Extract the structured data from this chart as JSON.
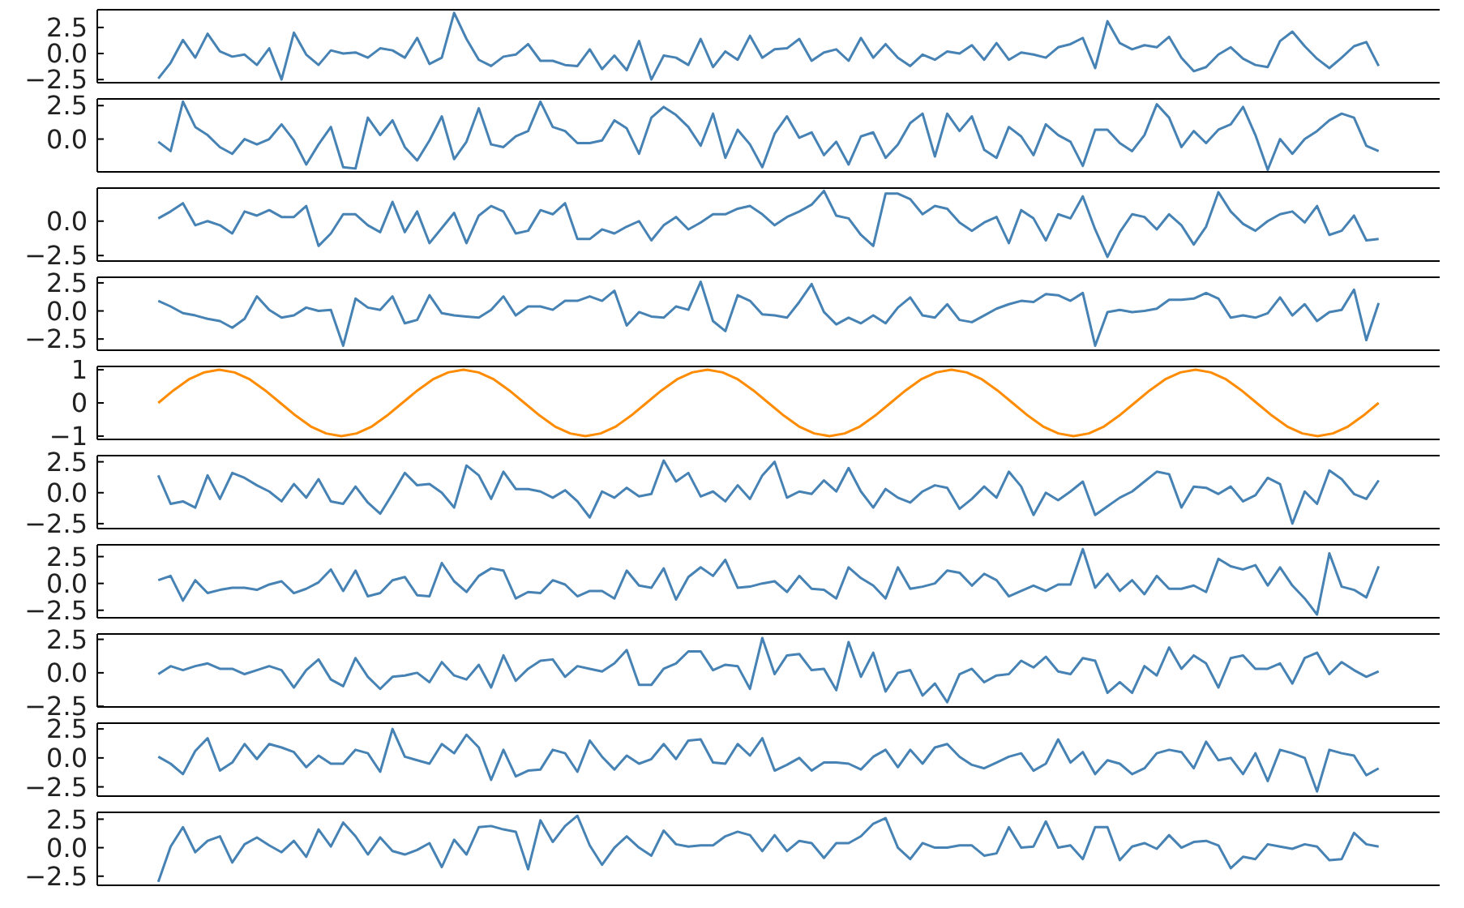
{
  "chart_data": [
    {
      "type": "line",
      "color": "#4682b4",
      "tick_labels": "y",
      "ylim": [
        -2.8,
        4.2
      ],
      "yticks": [
        {
          "value": -2.5,
          "label": "−2.5"
        },
        {
          "value": 0,
          "label": "0.0"
        },
        2.5
      ],
      "categories": [
        null,
        null,
        null,
        null,
        null,
        null,
        null,
        null,
        null,
        null,
        null,
        null,
        null,
        null,
        null,
        null,
        null,
        null,
        null,
        null,
        null,
        null,
        null,
        null,
        null,
        null,
        null,
        null,
        null,
        null,
        null,
        null,
        null,
        null,
        null,
        null,
        null,
        null,
        null,
        null,
        null,
        null,
        null,
        null,
        null,
        null,
        null,
        null,
        null,
        null,
        null,
        null,
        null,
        null,
        null,
        null,
        null,
        null,
        null,
        null,
        null,
        null,
        null,
        null,
        null,
        null,
        null,
        null,
        null,
        null,
        null,
        null,
        null,
        null,
        null,
        null,
        null,
        null,
        null,
        null,
        null,
        null,
        null,
        null,
        null,
        null,
        null,
        null,
        null,
        null,
        null,
        null,
        null,
        null,
        null,
        null,
        null,
        null,
        null,
        null
      ],
      "values": [
        -2.4,
        -0.9,
        1.3,
        -0.4,
        1.9,
        0.2,
        -0.3,
        -0.1,
        -1.1,
        0.5,
        -2.5,
        2.0,
        -0.1,
        -1.1,
        0.3,
        0,
        0.1,
        -0.4,
        0.5,
        0.3,
        -0.4,
        1.5,
        -1.0,
        -0.4,
        3.9,
        1.4,
        -0.6,
        -1.2,
        -0.3,
        -0.1,
        0.9,
        -0.7,
        -0.7,
        -1.1,
        -1.2,
        0.4,
        -1.5,
        -0.2,
        -1.6,
        1.2,
        -2.5,
        -0.2,
        -0.4,
        -1.1,
        1.4,
        -1.3,
        0.2,
        -0.6,
        1.7,
        -0.4,
        0.4,
        0.5,
        1.4,
        -0.7,
        0.1,
        0.4,
        -0.7,
        1.5,
        -0.4,
        0.9,
        -0.4,
        -1.2,
        -0.1,
        -0.6,
        0.2,
        0,
        0.8,
        -0.6,
        1.0,
        -0.6,
        0.1,
        -0.1,
        -0.4,
        0.6,
        0.9,
        1.5,
        -1.4,
        3.1,
        1.0,
        0.4,
        0.8,
        0.6,
        1.6,
        -0.4,
        -1.7,
        -1.3,
        -0.1,
        0.6,
        -0.5,
        -1.1,
        -1.3,
        1.2,
        2.1,
        0.7,
        -0.5,
        -1.4,
        -0.4,
        0.7,
        1.1,
        -1.2
      ]
    },
    {
      "type": "line",
      "color": "#4682b4",
      "tick_labels": "y",
      "ylim": [
        -2.45,
        3.0
      ],
      "yticks": [
        {
          "value": 0,
          "label": "0.0"
        },
        2.5
      ],
      "categories": [
        null,
        null,
        null,
        null,
        null,
        null,
        null,
        null,
        null,
        null,
        null,
        null,
        null,
        null,
        null,
        null,
        null,
        null,
        null,
        null,
        null,
        null,
        null,
        null,
        null,
        null,
        null,
        null,
        null,
        null,
        null,
        null,
        null,
        null,
        null,
        null,
        null,
        null,
        null,
        null,
        null,
        null,
        null,
        null,
        null,
        null,
        null,
        null,
        null,
        null,
        null,
        null,
        null,
        null,
        null,
        null,
        null,
        null,
        null,
        null,
        null,
        null,
        null,
        null,
        null,
        null,
        null,
        null,
        null,
        null,
        null,
        null,
        null,
        null,
        null,
        null,
        null,
        null,
        null,
        null,
        null,
        null,
        null,
        null,
        null,
        null,
        null,
        null,
        null,
        null,
        null,
        null,
        null,
        null,
        null,
        null,
        null,
        null,
        null,
        null
      ],
      "values": [
        -0.2,
        -0.9,
        2.8,
        0.9,
        0.3,
        -0.6,
        -1.1,
        0,
        -0.4,
        0,
        1.1,
        -0.1,
        -1.9,
        -0.4,
        0.9,
        -2.1,
        -2.2,
        1.6,
        0.3,
        1.4,
        -0.6,
        -1.6,
        -0.1,
        1.7,
        -1.5,
        -0.2,
        2.3,
        -0.4,
        -0.6,
        0.2,
        0.6,
        2.8,
        0.9,
        0.6,
        -0.3,
        -0.3,
        -0.1,
        1.4,
        0.8,
        -1.1,
        1.6,
        2.4,
        1.8,
        0.9,
        -0.5,
        1.9,
        -1.4,
        0.7,
        -0.4,
        -2.1,
        0.4,
        1.7,
        0.1,
        0.5,
        -1.2,
        -0.2,
        -1.9,
        0.2,
        0.5,
        -1.4,
        -0.4,
        1.2,
        1.9,
        -1.3,
        1.9,
        0.6,
        1.7,
        -0.8,
        -1.4,
        0.9,
        0.2,
        -1.2,
        1.1,
        0.3,
        -0.2,
        -2.0,
        0.7,
        0.7,
        -0.3,
        -0.9,
        0.3,
        2.6,
        1.6,
        -0.6,
        0.6,
        -0.3,
        0.7,
        1.1,
        2.4,
        0.3,
        -2.3,
        0,
        -1.1,
        0,
        0.6,
        1.4,
        1.9,
        1.6,
        -0.5,
        -0.9
      ]
    },
    {
      "type": "line",
      "color": "#4682b4",
      "tick_labels": "y",
      "ylim": [
        -2.9,
        2.4
      ],
      "yticks": [
        {
          "value": -2.5,
          "label": "−2.5"
        },
        {
          "value": 0,
          "label": "0.0"
        }
      ],
      "categories": [
        null,
        null,
        null,
        null,
        null,
        null,
        null,
        null,
        null,
        null,
        null,
        null,
        null,
        null,
        null,
        null,
        null,
        null,
        null,
        null,
        null,
        null,
        null,
        null,
        null,
        null,
        null,
        null,
        null,
        null,
        null,
        null,
        null,
        null,
        null,
        null,
        null,
        null,
        null,
        null,
        null,
        null,
        null,
        null,
        null,
        null,
        null,
        null,
        null,
        null,
        null,
        null,
        null,
        null,
        null,
        null,
        null,
        null,
        null,
        null,
        null,
        null,
        null,
        null,
        null,
        null,
        null,
        null,
        null,
        null,
        null,
        null,
        null,
        null,
        null,
        null,
        null,
        null,
        null,
        null,
        null,
        null,
        null,
        null,
        null,
        null,
        null,
        null,
        null,
        null,
        null,
        null,
        null,
        null,
        null,
        null,
        null,
        null,
        null,
        null
      ],
      "values": [
        0.2,
        0.7,
        1.3,
        -0.3,
        0,
        -0.3,
        -0.9,
        0.7,
        0.4,
        0.8,
        0.3,
        0.3,
        1.1,
        -1.8,
        -0.9,
        0.5,
        0.5,
        -0.3,
        -0.8,
        1.4,
        -0.8,
        0.7,
        -1.6,
        -0.5,
        0.6,
        -1.6,
        0.4,
        1.1,
        0.7,
        -0.9,
        -0.7,
        0.8,
        0.5,
        1.3,
        -1.3,
        -1.3,
        -0.6,
        -0.9,
        -0.4,
        0,
        -1.4,
        -0.3,
        0.3,
        -0.6,
        -0.1,
        0.5,
        0.5,
        0.9,
        1.1,
        0.5,
        -0.3,
        0.3,
        0.7,
        1.2,
        2.2,
        0.4,
        0.2,
        -1.0,
        -1.8,
        2.0,
        2.0,
        1.6,
        0.5,
        1.1,
        0.9,
        -0.1,
        -0.7,
        -0.1,
        0.3,
        -1.6,
        0.8,
        0.2,
        -1.4,
        0.5,
        0.2,
        1.8,
        -0.6,
        -2.6,
        -0.8,
        0.5,
        0.3,
        -0.6,
        0.5,
        -0.3,
        -1.7,
        -0.4,
        2.1,
        0.7,
        -0.2,
        -0.7,
        0,
        0.5,
        0.7,
        -0.1,
        1.1,
        -1.0,
        -0.7,
        0.4,
        -1.4,
        -1.3
      ]
    },
    {
      "type": "line",
      "color": "#4682b4",
      "tick_labels": "y",
      "ylim": [
        -3.5,
        3.0
      ],
      "yticks": [
        {
          "value": -2.5,
          "label": "−2.5"
        },
        {
          "value": 0,
          "label": "0.0"
        },
        2.5
      ],
      "categories": [
        null,
        null,
        null,
        null,
        null,
        null,
        null,
        null,
        null,
        null,
        null,
        null,
        null,
        null,
        null,
        null,
        null,
        null,
        null,
        null,
        null,
        null,
        null,
        null,
        null,
        null,
        null,
        null,
        null,
        null,
        null,
        null,
        null,
        null,
        null,
        null,
        null,
        null,
        null,
        null,
        null,
        null,
        null,
        null,
        null,
        null,
        null,
        null,
        null,
        null,
        null,
        null,
        null,
        null,
        null,
        null,
        null,
        null,
        null,
        null,
        null,
        null,
        null,
        null,
        null,
        null,
        null,
        null,
        null,
        null,
        null,
        null,
        null,
        null,
        null,
        null,
        null,
        null,
        null,
        null,
        null,
        null,
        null,
        null,
        null,
        null,
        null,
        null,
        null,
        null,
        null,
        null,
        null,
        null,
        null,
        null,
        null,
        null,
        null,
        null
      ],
      "values": [
        0.9,
        0.4,
        -0.2,
        -0.4,
        -0.7,
        -0.9,
        -1.5,
        -0.7,
        1.3,
        0.1,
        -0.6,
        -0.4,
        0.3,
        0,
        0.1,
        -3.1,
        1.1,
        0.3,
        0.1,
        1.3,
        -1.1,
        -0.8,
        1.4,
        -0.2,
        -0.4,
        -0.5,
        -0.6,
        0.1,
        1.3,
        -0.4,
        0.4,
        0.4,
        0.1,
        0.9,
        0.9,
        1.3,
        0.9,
        1.8,
        -1.3,
        -0.1,
        -0.5,
        -0.6,
        0.4,
        0.1,
        2.6,
        -0.9,
        -1.8,
        1.4,
        0.9,
        -0.3,
        -0.4,
        -0.6,
        0.8,
        2.4,
        -0.1,
        -1.2,
        -0.6,
        -1.1,
        -0.4,
        -1.1,
        0.3,
        1.2,
        -0.4,
        -0.6,
        0.6,
        -0.8,
        -1.0,
        -0.4,
        0.2,
        0.6,
        0.9,
        0.8,
        1.5,
        1.4,
        0.9,
        1.6,
        -3.1,
        -0.1,
        0.1,
        -0.1,
        0,
        0.2,
        1.0,
        1.0,
        1.1,
        1.6,
        1.1,
        -0.6,
        -0.4,
        -0.6,
        -0.2,
        1.2,
        -0.4,
        0.6,
        -0.9,
        -0.1,
        0.1,
        1.9,
        -2.6,
        0.7
      ]
    },
    {
      "type": "line",
      "color": "#ff8c00",
      "tick_labels": "y",
      "ylim": [
        -1.1,
        1.1
      ],
      "yticks": [
        {
          "value": -1,
          "label": "−1"
        },
        0,
        1
      ],
      "categories": [
        null,
        null,
        null,
        null,
        null,
        null,
        null,
        null,
        null,
        null,
        null,
        null,
        null,
        null,
        null,
        null,
        null,
        null,
        null,
        null,
        null,
        null,
        null,
        null,
        null,
        null,
        null,
        null,
        null,
        null,
        null,
        null,
        null,
        null,
        null,
        null,
        null,
        null,
        null,
        null,
        null,
        null,
        null,
        null,
        null,
        null,
        null,
        null,
        null,
        null,
        null,
        null,
        null,
        null,
        null,
        null,
        null,
        null,
        null,
        null,
        null,
        null,
        null,
        null,
        null,
        null,
        null,
        null,
        null,
        null,
        null,
        null,
        null,
        null,
        null,
        null,
        null,
        null,
        null,
        null,
        null
      ],
      "values": [
        0,
        0.38,
        0.71,
        0.92,
        1,
        0.92,
        0.71,
        0.38,
        0,
        -0.38,
        -0.71,
        -0.92,
        -1,
        -0.92,
        -0.71,
        -0.38,
        0,
        0.38,
        0.71,
        0.92,
        1,
        0.92,
        0.71,
        0.38,
        0,
        -0.38,
        -0.71,
        -0.92,
        -1,
        -0.92,
        -0.71,
        -0.38,
        0,
        0.38,
        0.71,
        0.92,
        1,
        0.92,
        0.71,
        0.38,
        0,
        -0.38,
        -0.71,
        -0.92,
        -1,
        -0.92,
        -0.71,
        -0.38,
        0,
        0.38,
        0.71,
        0.92,
        1,
        0.92,
        0.71,
        0.38,
        0,
        -0.38,
        -0.71,
        -0.92,
        -1,
        -0.92,
        -0.71,
        -0.38,
        0,
        0.38,
        0.71,
        0.92,
        1,
        0.92,
        0.71,
        0.38,
        0,
        -0.38,
        -0.71,
        -0.92,
        -1,
        -0.92,
        -0.71,
        -0.38,
        0
      ]
    },
    {
      "type": "line",
      "color": "#4682b4",
      "tick_labels": "y",
      "ylim": [
        -2.9,
        3.0
      ],
      "yticks": [
        {
          "value": -2.5,
          "label": "−2.5"
        },
        {
          "value": 0,
          "label": "0.0"
        },
        2.5
      ],
      "categories": [
        null,
        null,
        null,
        null,
        null,
        null,
        null,
        null,
        null,
        null,
        null,
        null,
        null,
        null,
        null,
        null,
        null,
        null,
        null,
        null,
        null,
        null,
        null,
        null,
        null,
        null,
        null,
        null,
        null,
        null,
        null,
        null,
        null,
        null,
        null,
        null,
        null,
        null,
        null,
        null,
        null,
        null,
        null,
        null,
        null,
        null,
        null,
        null,
        null,
        null,
        null,
        null,
        null,
        null,
        null,
        null,
        null,
        null,
        null,
        null,
        null,
        null,
        null,
        null,
        null,
        null,
        null,
        null,
        null,
        null,
        null,
        null,
        null,
        null,
        null,
        null,
        null,
        null,
        null,
        null,
        null,
        null,
        null,
        null,
        null,
        null,
        null,
        null,
        null,
        null,
        null,
        null,
        null,
        null,
        null,
        null,
        null,
        null,
        null,
        null
      ],
      "values": [
        1.4,
        -0.9,
        -0.7,
        -1.2,
        1.4,
        -0.5,
        1.6,
        1.2,
        0.6,
        0.1,
        -0.7,
        0.7,
        -0.4,
        1.1,
        -0.7,
        -0.9,
        0.5,
        -0.8,
        -1.7,
        -0.1,
        1.6,
        0.6,
        0.7,
        0,
        -1.2,
        2.2,
        1.4,
        -0.5,
        1.7,
        0.3,
        0.3,
        0.1,
        -0.4,
        0.2,
        -0.7,
        -2.0,
        0.1,
        -0.4,
        0.4,
        -0.3,
        -0.1,
        2.6,
        0.9,
        1.6,
        -0.3,
        0.1,
        -0.7,
        0.6,
        -0.5,
        1.4,
        2.5,
        -0.4,
        0.1,
        -0.1,
        1.0,
        0.1,
        2.0,
        0.1,
        -1.2,
        0.3,
        -0.4,
        -0.8,
        0.1,
        0.6,
        0.4,
        -1.3,
        -0.5,
        0.5,
        -0.4,
        1.7,
        0.5,
        -1.8,
        0,
        -0.6,
        0.1,
        0.9,
        -1.8,
        -1.1,
        -0.4,
        0.1,
        0.9,
        1.7,
        1.5,
        -1.2,
        0.5,
        0.4,
        -0.1,
        0.5,
        -0.7,
        -0.2,
        1.2,
        0.7,
        -2.5,
        0.1,
        -0.9,
        1.8,
        1.1,
        -0.1,
        -0.5,
        1.0
      ]
    },
    {
      "type": "line",
      "color": "#4682b4",
      "tick_labels": "y",
      "ylim": [
        -3.2,
        3.6
      ],
      "yticks": [
        {
          "value": -2.5,
          "label": "−2.5"
        },
        {
          "value": 0,
          "label": "0.0"
        },
        2.5
      ],
      "categories": [
        null,
        null,
        null,
        null,
        null,
        null,
        null,
        null,
        null,
        null,
        null,
        null,
        null,
        null,
        null,
        null,
        null,
        null,
        null,
        null,
        null,
        null,
        null,
        null,
        null,
        null,
        null,
        null,
        null,
        null,
        null,
        null,
        null,
        null,
        null,
        null,
        null,
        null,
        null,
        null,
        null,
        null,
        null,
        null,
        null,
        null,
        null,
        null,
        null,
        null,
        null,
        null,
        null,
        null,
        null,
        null,
        null,
        null,
        null,
        null,
        null,
        null,
        null,
        null,
        null,
        null,
        null,
        null,
        null,
        null,
        null,
        null,
        null,
        null,
        null,
        null,
        null,
        null,
        null,
        null,
        null,
        null,
        null,
        null,
        null,
        null,
        null,
        null,
        null,
        null,
        null,
        null,
        null,
        null,
        null,
        null,
        null,
        null,
        null,
        null
      ],
      "values": [
        0.3,
        0.7,
        -1.6,
        0.3,
        -0.9,
        -0.6,
        -0.4,
        -0.4,
        -0.6,
        -0.1,
        0.2,
        -0.9,
        -0.5,
        0.1,
        1.3,
        -0.7,
        1.2,
        -1.2,
        -0.9,
        0.3,
        0.6,
        -1.1,
        -1.2,
        1.9,
        0.2,
        -0.8,
        0.7,
        1.4,
        1.2,
        -1.4,
        -0.8,
        -0.9,
        0.3,
        -0.1,
        -1.2,
        -0.7,
        -0.7,
        -1.4,
        1.2,
        -0.2,
        -0.4,
        1.4,
        -1.5,
        0.6,
        1.5,
        0.7,
        2.2,
        -0.4,
        -0.3,
        0,
        0.2,
        -0.8,
        0.7,
        -0.5,
        -0.6,
        -1.4,
        1.5,
        0.5,
        -0.2,
        -1.4,
        1.5,
        -0.5,
        -0.3,
        0,
        1.2,
        1.0,
        -0.2,
        0.9,
        0.3,
        -1.2,
        -0.7,
        -0.2,
        -0.7,
        -0.1,
        -0.1,
        3.2,
        -0.4,
        0.9,
        -0.7,
        0.3,
        -1.0,
        0.7,
        -0.5,
        -0.5,
        -0.2,
        -0.8,
        2.3,
        1.6,
        1.3,
        1.7,
        -0.2,
        1.5,
        -0.2,
        -1.4,
        -2.9,
        2.8,
        -0.3,
        -0.6,
        -1.3,
        1.6
      ]
    },
    {
      "type": "line",
      "color": "#4682b4",
      "tick_labels": "y",
      "ylim": [
        -2.55,
        2.9
      ],
      "yticks": [
        {
          "value": -2.5,
          "label": "−2.5"
        },
        {
          "value": 0,
          "label": "0.0"
        },
        2.5
      ],
      "categories": [
        null,
        null,
        null,
        null,
        null,
        null,
        null,
        null,
        null,
        null,
        null,
        null,
        null,
        null,
        null,
        null,
        null,
        null,
        null,
        null,
        null,
        null,
        null,
        null,
        null,
        null,
        null,
        null,
        null,
        null,
        null,
        null,
        null,
        null,
        null,
        null,
        null,
        null,
        null,
        null,
        null,
        null,
        null,
        null,
        null,
        null,
        null,
        null,
        null,
        null,
        null,
        null,
        null,
        null,
        null,
        null,
        null,
        null,
        null,
        null,
        null,
        null,
        null,
        null,
        null,
        null,
        null,
        null,
        null,
        null,
        null,
        null,
        null,
        null,
        null,
        null,
        null,
        null,
        null,
        null,
        null,
        null,
        null,
        null,
        null,
        null,
        null,
        null,
        null,
        null,
        null,
        null,
        null,
        null,
        null,
        null,
        null,
        null,
        null,
        null
      ],
      "values": [
        -0.1,
        0.5,
        0.2,
        0.5,
        0.7,
        0.3,
        0.3,
        -0.1,
        0.2,
        0.5,
        0.2,
        -1.1,
        0.2,
        1.0,
        -0.5,
        -1.0,
        1.1,
        -0.3,
        -1.2,
        -0.3,
        -0.2,
        0,
        -0.7,
        0.8,
        -0.2,
        -0.5,
        0.6,
        -1.1,
        1.3,
        -0.6,
        0.3,
        0.9,
        1.0,
        -0.3,
        0.5,
        0.3,
        0.1,
        0.7,
        1.7,
        -0.9,
        -0.9,
        0.3,
        0.7,
        1.6,
        1.6,
        0.2,
        0.6,
        0.5,
        -1.2,
        2.6,
        -0.1,
        1.3,
        1.4,
        0.2,
        0.3,
        -1.3,
        2.3,
        -0.3,
        1.5,
        -1.4,
        0,
        0.2,
        -1.7,
        -0.8,
        -2.2,
        -0.1,
        0.3,
        -0.7,
        -0.2,
        -0.1,
        0.9,
        0.4,
        1.2,
        0.1,
        -0.1,
        1.1,
        0.9,
        -1.5,
        -0.7,
        -1.5,
        0.5,
        -0.2,
        1.9,
        0.3,
        1.3,
        0.7,
        -1.1,
        1.1,
        1.3,
        0.3,
        0.3,
        0.7,
        -0.8,
        1.1,
        1.5,
        -0.1,
        0.8,
        0.2,
        -0.3,
        0.1
      ]
    },
    {
      "type": "line",
      "color": "#4682b4",
      "tick_labels": "y",
      "ylim": [
        -3.3,
        3.0
      ],
      "yticks": [
        {
          "value": -2.5,
          "label": "−2.5"
        },
        {
          "value": 0,
          "label": "0.0"
        },
        2.5
      ],
      "categories": [
        null,
        null,
        null,
        null,
        null,
        null,
        null,
        null,
        null,
        null,
        null,
        null,
        null,
        null,
        null,
        null,
        null,
        null,
        null,
        null,
        null,
        null,
        null,
        null,
        null,
        null,
        null,
        null,
        null,
        null,
        null,
        null,
        null,
        null,
        null,
        null,
        null,
        null,
        null,
        null,
        null,
        null,
        null,
        null,
        null,
        null,
        null,
        null,
        null,
        null,
        null,
        null,
        null,
        null,
        null,
        null,
        null,
        null,
        null,
        null,
        null,
        null,
        null,
        null,
        null,
        null,
        null,
        null,
        null,
        null,
        null,
        null,
        null,
        null,
        null,
        null,
        null,
        null,
        null,
        null,
        null,
        null,
        null,
        null,
        null,
        null,
        null,
        null,
        null,
        null,
        null,
        null,
        null,
        null,
        null,
        null,
        null,
        null,
        null,
        null
      ],
      "values": [
        0.1,
        -0.5,
        -1.4,
        0.6,
        1.7,
        -1.1,
        -0.4,
        1.2,
        -0.1,
        1.2,
        0.9,
        0.5,
        -0.8,
        0.2,
        -0.5,
        -0.5,
        0.7,
        0.4,
        -1.2,
        2.5,
        0.1,
        -0.2,
        -0.5,
        1.2,
        0.4,
        2.0,
        0.9,
        -1.9,
        0.7,
        -1.6,
        -1.1,
        -1.0,
        0.7,
        0.4,
        -1.2,
        1.5,
        0.1,
        -1.0,
        0.2,
        -0.5,
        -0.1,
        1.2,
        -0.1,
        1.5,
        1.6,
        -0.4,
        -0.5,
        1.2,
        0.2,
        1.7,
        -1.1,
        -0.6,
        0,
        -1.1,
        -0.4,
        -0.4,
        -0.5,
        -1.0,
        0.1,
        0.7,
        -0.8,
        0.7,
        -0.5,
        0.9,
        1.2,
        0.1,
        -0.6,
        -0.9,
        -0.4,
        0.1,
        0.4,
        -1.1,
        -0.5,
        1.6,
        -0.4,
        0.5,
        -1.4,
        -0.2,
        -0.5,
        -1.4,
        -0.9,
        0.4,
        0.7,
        0.5,
        -0.9,
        1.4,
        -0.2,
        0,
        -1.4,
        0.4,
        -2.0,
        0.7,
        0.4,
        0,
        -2.9,
        0.7,
        0.4,
        0.2,
        -1.5,
        -0.9
      ]
    },
    {
      "type": "line",
      "color": "#4682b4",
      "tick_labels": "y",
      "ylim": [
        -3.3,
        3.1
      ],
      "yticks": [
        {
          "value": -2.5,
          "label": "−2.5"
        },
        {
          "value": 0,
          "label": "0.0"
        },
        2.5
      ],
      "categories": [
        null,
        null,
        null,
        null,
        null,
        null,
        null,
        null,
        null,
        null,
        null,
        null,
        null,
        null,
        null,
        null,
        null,
        null,
        null,
        null,
        null,
        null,
        null,
        null,
        null,
        null,
        null,
        null,
        null,
        null,
        null,
        null,
        null,
        null,
        null,
        null,
        null,
        null,
        null,
        null,
        null,
        null,
        null,
        null,
        null,
        null,
        null,
        null,
        null,
        null,
        null,
        null,
        null,
        null,
        null,
        null,
        null,
        null,
        null,
        null,
        null,
        null,
        null,
        null,
        null,
        null,
        null,
        null,
        null,
        null,
        null,
        null,
        null,
        null,
        null,
        null,
        null,
        null,
        null,
        null,
        null,
        null,
        null,
        null,
        null,
        null,
        null,
        null,
        null,
        null,
        null,
        null,
        null,
        null,
        null,
        null,
        null,
        null,
        null,
        null
      ],
      "values": [
        -3.0,
        0.1,
        1.8,
        -0.4,
        0.6,
        1.0,
        -1.3,
        0.3,
        0.9,
        0.2,
        -0.4,
        0.6,
        -0.8,
        1.6,
        0.1,
        2.2,
        1.0,
        -0.6,
        0.9,
        -0.3,
        -0.6,
        -0.2,
        0.4,
        -1.7,
        0.7,
        -0.6,
        1.8,
        1.9,
        1.6,
        1.4,
        -1.9,
        2.4,
        0.5,
        1.9,
        2.8,
        0.2,
        -1.5,
        0,
        1.0,
        0,
        -0.7,
        1.5,
        0.3,
        0.1,
        0.2,
        0.2,
        1.0,
        1.4,
        1.1,
        -0.3,
        1.1,
        -0.3,
        0.6,
        0.4,
        -0.9,
        0.4,
        0.4,
        1.0,
        2.1,
        2.6,
        0,
        -1.0,
        0.4,
        0,
        0,
        0.2,
        0.2,
        -0.7,
        -0.5,
        1.8,
        0,
        0.1,
        2.3,
        0,
        0.2,
        -1.0,
        1.8,
        1.8,
        -1.1,
        0.1,
        0.4,
        -0.1,
        1.1,
        0,
        0.5,
        0.6,
        0.2,
        -1.8,
        -0.8,
        -1.0,
        0.3,
        0.1,
        -0.1,
        0.3,
        0.1,
        -1.1,
        -1.0,
        1.3,
        0.3,
        0.1
      ]
    }
  ]
}
